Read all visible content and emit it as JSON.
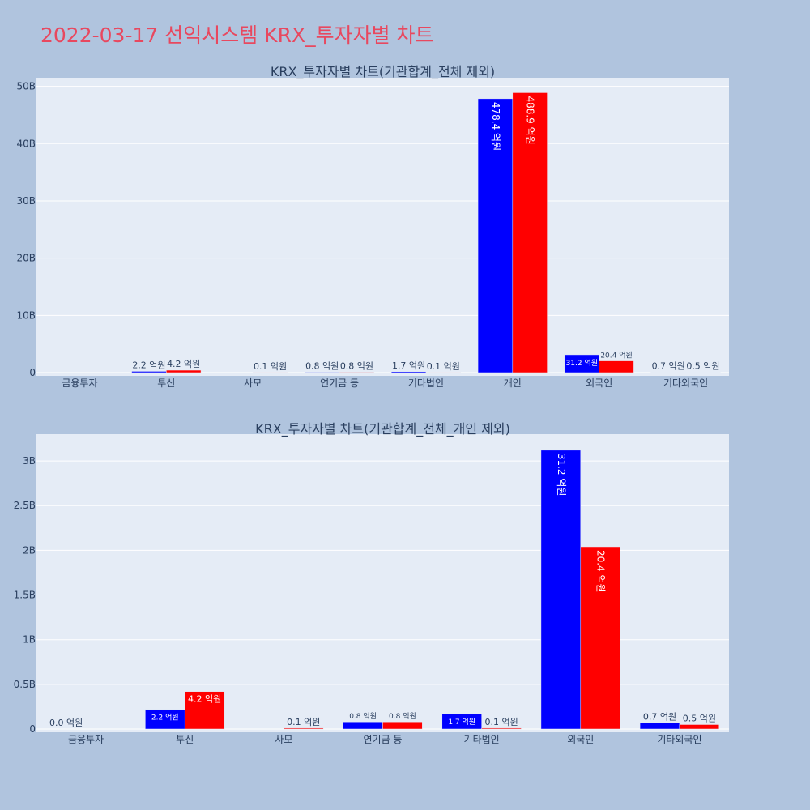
{
  "title": "2022-03-17 선익시스템 KRX_투자자별 차트",
  "colors": {
    "buy": "#0000ff",
    "sell": "#ff0000",
    "text": "#2a3f5f",
    "plot_bg": "#e5ecf6",
    "page_bg": "#b0c4de",
    "title": "#e8485f"
  },
  "chart_data": [
    {
      "type": "bar",
      "title": "KRX_투자자별 차트(기관합계_전체 제외)",
      "categories": [
        "금융투자",
        "투신",
        "사모",
        "연기금 등",
        "기타법인",
        "개인",
        "외국인",
        "기타외국인"
      ],
      "series": [
        {
          "values": [
            0,
            0.22,
            0,
            0.08,
            0.17,
            47.84,
            3.12,
            0.07
          ],
          "labels": [
            "",
            "2.2 억원",
            "",
            "0.8 억원",
            "1.7 억원",
            "478.4 억원",
            "31.2 억원",
            "0.7 억원"
          ]
        },
        {
          "values": [
            0,
            0.42,
            0.01,
            0.08,
            0.01,
            48.89,
            2.04,
            0.05
          ],
          "labels": [
            "",
            "4.2 억원",
            "0.1 억원",
            "0.8 억원",
            "0.1 억원",
            "488.9 억원",
            "20.4 억원",
            "0.5 억원"
          ]
        }
      ],
      "ylim": [
        0,
        51.5
      ],
      "yticks": [
        0,
        10,
        20,
        30,
        40,
        50
      ],
      "yticklabels": [
        "0",
        "10B",
        "20B",
        "30B",
        "40B",
        "50B"
      ],
      "grid": true
    },
    {
      "type": "bar",
      "title": "KRX_투자자별 차트(기관합계_전체_개인 제외)",
      "categories": [
        "금융투자",
        "투신",
        "사모",
        "연기금 등",
        "기타법인",
        "외국인",
        "기타외국인"
      ],
      "series": [
        {
          "values": [
            0,
            0.22,
            0,
            0.08,
            0.17,
            3.12,
            0.07
          ],
          "labels": [
            "0.0 억원",
            "2.2 억원",
            "",
            "0.8 억원",
            "1.7 억원",
            "31.2 억원",
            "0.7 억원"
          ]
        },
        {
          "values": [
            0,
            0.42,
            0.01,
            0.08,
            0.01,
            2.04,
            0.05
          ],
          "labels": [
            "",
            "4.2 억원",
            "0.1 억원",
            "0.8 억원",
            "0.1 억원",
            "20.4 억원",
            "0.5 억원"
          ]
        }
      ],
      "ylim": [
        0,
        3.3
      ],
      "yticks": [
        0,
        0.5,
        1,
        1.5,
        2,
        2.5,
        3
      ],
      "yticklabels": [
        "0",
        "0.5B",
        "1B",
        "1.5B",
        "2B",
        "2.5B",
        "3B"
      ],
      "grid": true
    }
  ]
}
